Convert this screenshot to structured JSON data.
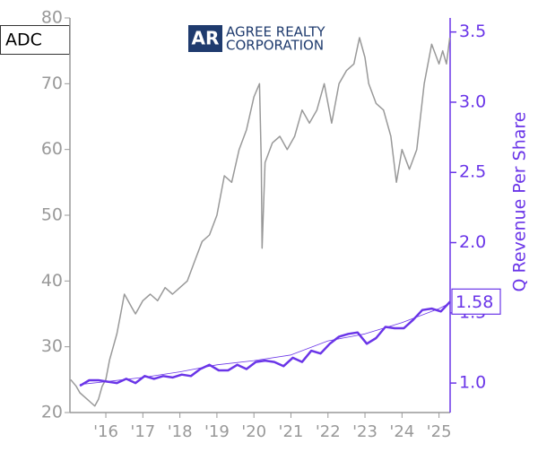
{
  "chart_data": {
    "type": "line",
    "ticker": "ADC",
    "logo_mark": "AR",
    "logo_text": [
      "AGREE REALTY",
      "CORPORATION"
    ],
    "y2label": "Q Revenue Per Share",
    "xlim": [
      2015.03,
      2025.3
    ],
    "xticks": [
      {
        "value": 2016,
        "label": "'16"
      },
      {
        "value": 2017,
        "label": "'17"
      },
      {
        "value": 2018,
        "label": "'18"
      },
      {
        "value": 2019,
        "label": "'19"
      },
      {
        "value": 2020,
        "label": "'20"
      },
      {
        "value": 2021,
        "label": "'21"
      },
      {
        "value": 2022,
        "label": "'22"
      },
      {
        "value": 2023,
        "label": "'23"
      },
      {
        "value": 2024,
        "label": "'24"
      },
      {
        "value": 2025,
        "label": "'25"
      }
    ],
    "ylim": [
      20,
      80
    ],
    "yticks": [
      20,
      30,
      40,
      50,
      60,
      70,
      80
    ],
    "y2lim": [
      0.79,
      3.6
    ],
    "y2ticks": [
      {
        "value": 1,
        "label": "1.0"
      },
      1.5,
      {
        "value": 2,
        "label": "2.0"
      },
      2.5,
      {
        "value": 3,
        "label": "3.0"
      },
      3.5
    ],
    "series": [
      {
        "color": "#999999",
        "axis": "y",
        "width": 1.5,
        "x": [
          2015.05,
          2015.2,
          2015.3,
          2015.4,
          2015.5,
          2015.6,
          2015.7,
          2015.8,
          2015.9,
          2016.0,
          2016.1,
          2016.2,
          2016.3,
          2016.4,
          2016.5,
          2016.6,
          2016.7,
          2016.8,
          2016.9,
          2017.0,
          2017.2,
          2017.4,
          2017.6,
          2017.8,
          2018.0,
          2018.2,
          2018.4,
          2018.6,
          2018.8,
          2019.0,
          2019.2,
          2019.4,
          2019.6,
          2019.8,
          2020.0,
          2020.15,
          2020.2,
          2020.22,
          2020.3,
          2020.5,
          2020.7,
          2020.9,
          2021.1,
          2021.3,
          2021.5,
          2021.7,
          2021.9,
          2022.1,
          2022.3,
          2022.5,
          2022.7,
          2022.85,
          2023.0,
          2023.1,
          2023.3,
          2023.5,
          2023.7,
          2023.85,
          2024.0,
          2024.2,
          2024.4,
          2024.6,
          2024.8,
          2025.0,
          2025.1,
          2025.2,
          2025.29
        ],
        "values": [
          25,
          24,
          23,
          22.5,
          22,
          21.5,
          21,
          22,
          24,
          25,
          28,
          30,
          32,
          35,
          38,
          37,
          36,
          35,
          36,
          37,
          38,
          37,
          39,
          38,
          39,
          40,
          43,
          46,
          47,
          50,
          56,
          55,
          60,
          63,
          68,
          70,
          58,
          45,
          58,
          61,
          62,
          60,
          62,
          66,
          64,
          66,
          70,
          64,
          70,
          72,
          73,
          77,
          74,
          70,
          67,
          66,
          62,
          55,
          60,
          57,
          60,
          70,
          76,
          73,
          75,
          73,
          77
        ]
      },
      {
        "color": "#6a35e8",
        "axis": "y2",
        "width": 2.5,
        "x": [
          2015.3,
          2015.55,
          2015.8,
          2016.05,
          2016.3,
          2016.55,
          2016.8,
          2017.05,
          2017.3,
          2017.55,
          2017.8,
          2018.05,
          2018.3,
          2018.55,
          2018.8,
          2019.05,
          2019.3,
          2019.55,
          2019.8,
          2020.05,
          2020.3,
          2020.55,
          2020.8,
          2021.05,
          2021.3,
          2021.55,
          2021.8,
          2022.05,
          2022.3,
          2022.55,
          2022.8,
          2023.05,
          2023.3,
          2023.55,
          2023.8,
          2024.05,
          2024.3,
          2024.55,
          2024.8,
          2025.05,
          2025.3
        ],
        "values": [
          0.98,
          1.02,
          1.02,
          1.01,
          1.0,
          1.03,
          1.0,
          1.05,
          1.03,
          1.05,
          1.04,
          1.06,
          1.05,
          1.1,
          1.13,
          1.09,
          1.09,
          1.13,
          1.1,
          1.15,
          1.16,
          1.15,
          1.12,
          1.18,
          1.15,
          1.23,
          1.21,
          1.28,
          1.33,
          1.35,
          1.36,
          1.28,
          1.32,
          1.4,
          1.39,
          1.39,
          1.45,
          1.52,
          1.53,
          1.51,
          1.58
        ]
      },
      {
        "color": "#6a35e8",
        "axis": "y2",
        "width": 0.8,
        "x": [
          2015.3,
          2016,
          2017,
          2018,
          2019,
          2020,
          2021,
          2022,
          2023,
          2024,
          2025,
          2025.3
        ],
        "values": [
          0.99,
          1.01,
          1.04,
          1.08,
          1.13,
          1.16,
          1.2,
          1.3,
          1.35,
          1.43,
          1.53,
          1.57
        ]
      }
    ]
  }
}
